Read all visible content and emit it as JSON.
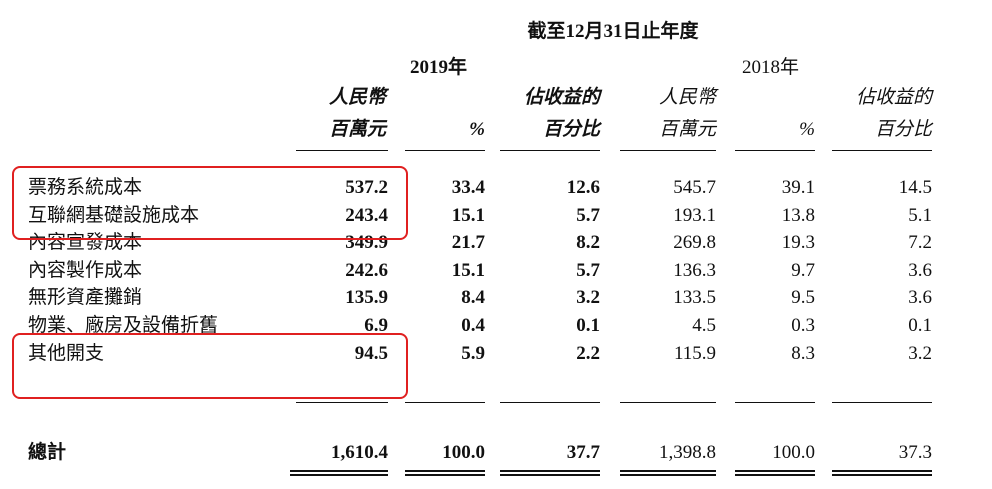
{
  "header": {
    "period": "截至12月31日止年度",
    "year_2019": "2019年",
    "year_2018": "2018年",
    "col_rmb_line1": "人民幣",
    "col_rmb_line2": "百萬元",
    "col_pct": "%",
    "col_rev_line1": "佔收益的",
    "col_rev_line2": "百分比"
  },
  "rows": [
    {
      "label": "票務系統成本",
      "v2019": "537.2",
      "p2019": "33.4",
      "r2019": "12.6",
      "v2018": "545.7",
      "p2018": "39.1",
      "r2018": "14.5"
    },
    {
      "label": "互聯網基礎設施成本",
      "v2019": "243.4",
      "p2019": "15.1",
      "r2019": "5.7",
      "v2018": "193.1",
      "p2018": "13.8",
      "r2018": "5.1"
    },
    {
      "label": "內容宣發成本",
      "v2019": "349.9",
      "p2019": "21.7",
      "r2019": "8.2",
      "v2018": "269.8",
      "p2018": "19.3",
      "r2018": "7.2"
    },
    {
      "label": "內容製作成本",
      "v2019": "242.6",
      "p2019": "15.1",
      "r2019": "5.7",
      "v2018": "136.3",
      "p2018": "9.7",
      "r2018": "3.6"
    },
    {
      "label": "無形資產攤銷",
      "v2019": "135.9",
      "p2019": "8.4",
      "r2019": "3.2",
      "v2018": "133.5",
      "p2018": "9.5",
      "r2018": "3.6"
    },
    {
      "label": "物業、廠房及設備折舊",
      "v2019": "6.9",
      "p2019": "0.4",
      "r2019": "0.1",
      "v2018": "4.5",
      "p2018": "0.3",
      "r2018": "0.1"
    },
    {
      "label": "其他開支",
      "v2019": "94.5",
      "p2019": "5.9",
      "r2019": "2.2",
      "v2018": "115.9",
      "p2018": "8.3",
      "r2018": "3.2"
    }
  ],
  "total": {
    "label": "總計",
    "v2019": "1,610.4",
    "p2019": "100.0",
    "r2019": "37.7",
    "v2018": "1,398.8",
    "p2018": "100.0",
    "r2018": "37.3"
  },
  "highlight_color": "#e02020"
}
